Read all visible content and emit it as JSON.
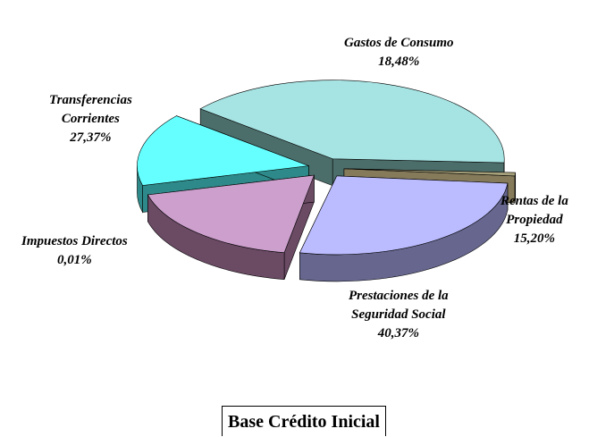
{
  "chart_data": {
    "type": "pie",
    "title": "Base Crédito Inicial",
    "slices": [
      {
        "label_lines": [
          "Gastos de Consumo"
        ],
        "value_label": "18,48%",
        "value": 18.48,
        "top_color": "#cc9fcc",
        "side_color": "#6b4a64"
      },
      {
        "label_lines": [
          "Rentas de la",
          "Propiedad"
        ],
        "value_label": "15,20%",
        "value": 15.2,
        "top_color": "#66ffff",
        "side_color": "#2e8a8a"
      },
      {
        "label_lines": [
          "Prestaciones de la",
          "Seguridad Social"
        ],
        "value_label": "40,37%",
        "value": 40.37,
        "top_color": "#a6e3e3",
        "side_color": "#4c6e6a"
      },
      {
        "label_lines": [
          "Impuestos Directos"
        ],
        "value_label": "0,01%",
        "value": 0.01,
        "top_color": "#a6a07a",
        "side_color": "#857a5a"
      },
      {
        "label_lines": [
          "Transferencias",
          "Corrientes"
        ],
        "value_label": "27,37%",
        "value": 27.37,
        "top_color": "#bbbbff",
        "side_color": "#66668e"
      }
    ]
  }
}
